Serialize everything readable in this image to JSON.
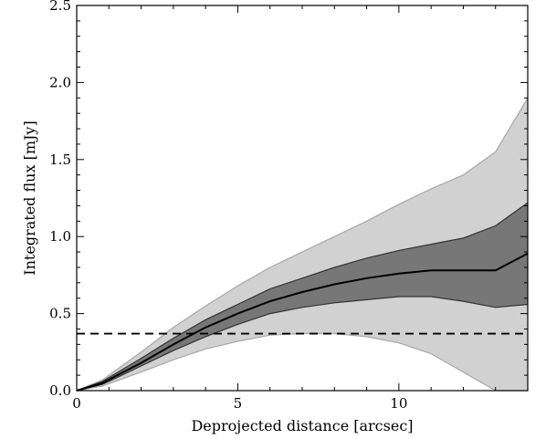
{
  "chart_data": {
    "type": "line",
    "title": "",
    "xlabel": "Deprojected distance [arcsec]",
    "ylabel": "Integrated flux [mJy]",
    "xlim": [
      0,
      14
    ],
    "ylim": [
      0.0,
      2.5
    ],
    "x_ticks": [
      0,
      5,
      10
    ],
    "x_tick_labels": [
      "0",
      "5",
      "10"
    ],
    "y_ticks": [
      0.0,
      0.5,
      1.0,
      1.5,
      2.0,
      2.5
    ],
    "y_tick_labels": [
      "0.0",
      "0.5",
      "1.0",
      "1.5",
      "2.0",
      "2.5"
    ],
    "grid": false,
    "legend": false,
    "x": [
      0,
      0.8,
      2,
      3,
      4,
      5,
      6,
      7,
      8,
      9,
      10,
      11,
      12,
      13,
      14
    ],
    "series": [
      {
        "role": "median",
        "color": "#000000",
        "values": [
          0.0,
          0.05,
          0.18,
          0.3,
          0.41,
          0.5,
          0.58,
          0.64,
          0.69,
          0.73,
          0.76,
          0.78,
          0.78,
          0.78,
          0.89
        ]
      }
    ],
    "bands": [
      {
        "role": "outer-band",
        "color": "#d1d1d1",
        "edge_color": "#a8a8a8",
        "lower": [
          0.0,
          0.03,
          0.12,
          0.2,
          0.27,
          0.32,
          0.36,
          0.37,
          0.37,
          0.35,
          0.31,
          0.24,
          0.12,
          0.0,
          0.0
        ],
        "upper": [
          0.0,
          0.07,
          0.25,
          0.41,
          0.55,
          0.68,
          0.8,
          0.9,
          1.0,
          1.1,
          1.21,
          1.31,
          1.4,
          1.55,
          1.9
        ]
      },
      {
        "role": "inner-band",
        "color": "#777777",
        "edge_color": "#333333",
        "lower": [
          0.0,
          0.04,
          0.16,
          0.26,
          0.35,
          0.43,
          0.5,
          0.54,
          0.57,
          0.59,
          0.61,
          0.61,
          0.58,
          0.54,
          0.56
        ],
        "upper": [
          0.0,
          0.06,
          0.21,
          0.34,
          0.46,
          0.56,
          0.66,
          0.73,
          0.8,
          0.86,
          0.91,
          0.95,
          0.99,
          1.07,
          1.22
        ]
      }
    ],
    "hline": {
      "y": 0.37,
      "style": "dashed",
      "color": "#000000"
    }
  }
}
